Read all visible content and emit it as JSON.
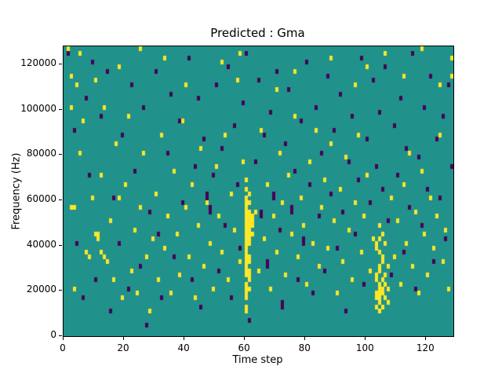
{
  "chart_data": {
    "type": "heatmap",
    "title": "Predicted : Gma",
    "xlabel": "Time step",
    "ylabel": "Frequency (Hz)",
    "xlim": [
      0,
      129
    ],
    "ylim": [
      0,
      128000
    ],
    "x_ticks": [
      0,
      20,
      40,
      60,
      80,
      100,
      120
    ],
    "y_ticks": [
      0,
      20000,
      40000,
      60000,
      80000,
      100000,
      120000
    ],
    "grid": {
      "nx": 129,
      "ny": 64,
      "cell_hz": 2000
    },
    "legend": "none",
    "colors": {
      "background": "#21918c",
      "high": "#fde725",
      "low": "#440154"
    },
    "value_legend": {
      "background": 0,
      "high": 1,
      "low": -1
    },
    "cells_high": [
      [
        60,
        5
      ],
      [
        60,
        6
      ],
      [
        60,
        8
      ],
      [
        60,
        9
      ],
      [
        60,
        10
      ],
      [
        60,
        11
      ],
      [
        60,
        13
      ],
      [
        60,
        14
      ],
      [
        60,
        15
      ],
      [
        60,
        16
      ],
      [
        60,
        17
      ],
      [
        60,
        18
      ],
      [
        60,
        19
      ],
      [
        60,
        20
      ],
      [
        60,
        21
      ],
      [
        60,
        22
      ],
      [
        60,
        23
      ],
      [
        60,
        24
      ],
      [
        60,
        25
      ],
      [
        60,
        26
      ],
      [
        60,
        27
      ],
      [
        60,
        28
      ],
      [
        60,
        29
      ],
      [
        60,
        30
      ],
      [
        60,
        32
      ],
      [
        60,
        34
      ],
      [
        61,
        10
      ],
      [
        61,
        12
      ],
      [
        61,
        13
      ],
      [
        61,
        14
      ],
      [
        61,
        16
      ],
      [
        61,
        17
      ],
      [
        61,
        20
      ],
      [
        61,
        21
      ],
      [
        61,
        22
      ],
      [
        61,
        23
      ],
      [
        61,
        24
      ],
      [
        61,
        25
      ],
      [
        61,
        26
      ],
      [
        61,
        27
      ],
      [
        61,
        29
      ],
      [
        61,
        31
      ],
      [
        62,
        22
      ],
      [
        62,
        24
      ],
      [
        62,
        25
      ],
      [
        62,
        26
      ],
      [
        103,
        6
      ],
      [
        103,
        8
      ],
      [
        103,
        9
      ],
      [
        103,
        12
      ],
      [
        103,
        13
      ],
      [
        103,
        19
      ],
      [
        103,
        20
      ],
      [
        104,
        5
      ],
      [
        104,
        7
      ],
      [
        104,
        8
      ],
      [
        104,
        9
      ],
      [
        104,
        10
      ],
      [
        104,
        11
      ],
      [
        104,
        14
      ],
      [
        104,
        15
      ],
      [
        104,
        18
      ],
      [
        104,
        21
      ],
      [
        104,
        24
      ],
      [
        105,
        6
      ],
      [
        105,
        9
      ],
      [
        105,
        10
      ],
      [
        105,
        12
      ],
      [
        105,
        16
      ],
      [
        105,
        17
      ],
      [
        105,
        22
      ],
      [
        106,
        8
      ],
      [
        106,
        11
      ],
      [
        106,
        13
      ],
      [
        106,
        20
      ],
      [
        107,
        7
      ],
      [
        107,
        10
      ],
      [
        107,
        15
      ],
      [
        2,
        50
      ],
      [
        2,
        28
      ],
      [
        3,
        28
      ],
      [
        3,
        10
      ],
      [
        4,
        55
      ],
      [
        5,
        40
      ],
      [
        6,
        47
      ],
      [
        7,
        18
      ],
      [
        8,
        17
      ],
      [
        9,
        30
      ],
      [
        10,
        22
      ],
      [
        11,
        22
      ],
      [
        11,
        21
      ],
      [
        12,
        35
      ],
      [
        12,
        18
      ],
      [
        13,
        50
      ],
      [
        13,
        17
      ],
      [
        14,
        16
      ],
      [
        15,
        25
      ],
      [
        16,
        12
      ],
      [
        17,
        42
      ],
      [
        18,
        30
      ],
      [
        19,
        8
      ],
      [
        20,
        33
      ],
      [
        21,
        48
      ],
      [
        22,
        14
      ],
      [
        23,
        23
      ],
      [
        24,
        9
      ],
      [
        25,
        28
      ],
      [
        26,
        40
      ],
      [
        27,
        17
      ],
      [
        28,
        5
      ],
      [
        29,
        21
      ],
      [
        30,
        31
      ],
      [
        31,
        12
      ],
      [
        32,
        44
      ],
      [
        33,
        19
      ],
      [
        34,
        26
      ],
      [
        35,
        9
      ],
      [
        36,
        36
      ],
      [
        37,
        22
      ],
      [
        38,
        13
      ],
      [
        39,
        47
      ],
      [
        40,
        28
      ],
      [
        41,
        17
      ],
      [
        42,
        33
      ],
      [
        43,
        8
      ],
      [
        44,
        24
      ],
      [
        45,
        41
      ],
      [
        46,
        15
      ],
      [
        47,
        29
      ],
      [
        48,
        20
      ],
      [
        49,
        10
      ],
      [
        50,
        37
      ],
      [
        51,
        26
      ],
      [
        52,
        18
      ],
      [
        53,
        44
      ],
      [
        54,
        12
      ],
      [
        55,
        31
      ],
      [
        56,
        23
      ],
      [
        57,
        56
      ],
      [
        58,
        16
      ],
      [
        59,
        38
      ],
      [
        63,
        27
      ],
      [
        64,
        14
      ],
      [
        65,
        45
      ],
      [
        66,
        21
      ],
      [
        67,
        33
      ],
      [
        68,
        10
      ],
      [
        69,
        26
      ],
      [
        70,
        18
      ],
      [
        71,
        40
      ],
      [
        72,
        29
      ],
      [
        73,
        13
      ],
      [
        74,
        35
      ],
      [
        75,
        22
      ],
      [
        76,
        48
      ],
      [
        77,
        17
      ],
      [
        78,
        30
      ],
      [
        79,
        24
      ],
      [
        80,
        11
      ],
      [
        81,
        38
      ],
      [
        82,
        20
      ],
      [
        83,
        45
      ],
      [
        84,
        15
      ],
      [
        85,
        28
      ],
      [
        86,
        34
      ],
      [
        87,
        19
      ],
      [
        88,
        42
      ],
      [
        89,
        25
      ],
      [
        90,
        9
      ],
      [
        91,
        32
      ],
      [
        92,
        16
      ],
      [
        93,
        39
      ],
      [
        94,
        23
      ],
      [
        95,
        12
      ],
      [
        96,
        29
      ],
      [
        97,
        44
      ],
      [
        98,
        18
      ],
      [
        99,
        26
      ],
      [
        100,
        35
      ],
      [
        101,
        14
      ],
      [
        102,
        21
      ],
      [
        108,
        30
      ],
      [
        109,
        17
      ],
      [
        110,
        25
      ],
      [
        111,
        11
      ],
      [
        112,
        33
      ],
      [
        113,
        20
      ],
      [
        114,
        40
      ],
      [
        115,
        15
      ],
      [
        116,
        27
      ],
      [
        117,
        9
      ],
      [
        118,
        36
      ],
      [
        119,
        22
      ],
      [
        120,
        13
      ],
      [
        121,
        30
      ],
      [
        122,
        19
      ],
      [
        123,
        26
      ],
      [
        124,
        44
      ],
      [
        125,
        16
      ],
      [
        126,
        23
      ],
      [
        127,
        10
      ],
      [
        128,
        57
      ],
      [
        1,
        63
      ],
      [
        2,
        57
      ],
      [
        5,
        62
      ],
      [
        10,
        56
      ],
      [
        18,
        59
      ],
      [
        25,
        63
      ],
      [
        33,
        61
      ],
      [
        40,
        55
      ],
      [
        52,
        60
      ],
      [
        58,
        62
      ],
      [
        70,
        54
      ],
      [
        76,
        58
      ],
      [
        88,
        61
      ],
      [
        96,
        55
      ],
      [
        100,
        59
      ],
      [
        106,
        62
      ],
      [
        112,
        57
      ],
      [
        118,
        63
      ],
      [
        124,
        55
      ],
      [
        128,
        61
      ]
    ],
    "cells_low": [
      [
        1,
        62
      ],
      [
        3,
        45
      ],
      [
        4,
        20
      ],
      [
        6,
        8
      ],
      [
        7,
        52
      ],
      [
        8,
        35
      ],
      [
        9,
        60
      ],
      [
        10,
        12
      ],
      [
        12,
        48
      ],
      [
        14,
        58
      ],
      [
        15,
        5
      ],
      [
        16,
        30
      ],
      [
        18,
        20
      ],
      [
        19,
        44
      ],
      [
        21,
        10
      ],
      [
        22,
        55
      ],
      [
        23,
        36
      ],
      [
        25,
        15
      ],
      [
        26,
        50
      ],
      [
        27,
        2
      ],
      [
        28,
        27
      ],
      [
        30,
        58
      ],
      [
        31,
        22
      ],
      [
        32,
        8
      ],
      [
        34,
        40
      ],
      [
        35,
        53
      ],
      [
        36,
        17
      ],
      [
        38,
        47
      ],
      [
        39,
        29
      ],
      [
        41,
        61
      ],
      [
        42,
        12
      ],
      [
        43,
        37
      ],
      [
        44,
        52
      ],
      [
        45,
        6
      ],
      [
        46,
        43
      ],
      [
        47,
        31
      ],
      [
        47,
        30
      ],
      [
        48,
        28
      ],
      [
        48,
        27
      ],
      [
        49,
        35
      ],
      [
        50,
        55
      ],
      [
        51,
        14
      ],
      [
        52,
        41
      ],
      [
        53,
        24
      ],
      [
        54,
        59
      ],
      [
        55,
        8
      ],
      [
        56,
        46
      ],
      [
        57,
        33
      ],
      [
        58,
        19
      ],
      [
        59,
        51
      ],
      [
        60,
        62
      ],
      [
        61,
        3
      ],
      [
        63,
        38
      ],
      [
        64,
        56
      ],
      [
        65,
        27
      ],
      [
        65,
        26
      ],
      [
        66,
        44
      ],
      [
        67,
        16
      ],
      [
        67,
        15
      ],
      [
        68,
        49
      ],
      [
        69,
        31
      ],
      [
        69,
        30
      ],
      [
        70,
        58
      ],
      [
        71,
        23
      ],
      [
        72,
        7
      ],
      [
        72,
        6
      ],
      [
        73,
        42
      ],
      [
        74,
        54
      ],
      [
        75,
        28
      ],
      [
        75,
        27
      ],
      [
        76,
        36
      ],
      [
        77,
        12
      ],
      [
        78,
        47
      ],
      [
        79,
        21
      ],
      [
        79,
        20
      ],
      [
        80,
        60
      ],
      [
        81,
        33
      ],
      [
        82,
        9
      ],
      [
        83,
        50
      ],
      [
        84,
        26
      ],
      [
        85,
        40
      ],
      [
        86,
        14
      ],
      [
        87,
        57
      ],
      [
        88,
        31
      ],
      [
        89,
        45
      ],
      [
        90,
        19
      ],
      [
        91,
        53
      ],
      [
        92,
        27
      ],
      [
        93,
        5
      ],
      [
        94,
        38
      ],
      [
        95,
        48
      ],
      [
        96,
        22
      ],
      [
        97,
        34
      ],
      [
        98,
        61
      ],
      [
        99,
        11
      ],
      [
        100,
        43
      ],
      [
        101,
        29
      ],
      [
        102,
        56
      ],
      [
        103,
        37
      ],
      [
        104,
        49
      ],
      [
        105,
        32
      ],
      [
        106,
        59
      ],
      [
        107,
        25
      ],
      [
        108,
        13
      ],
      [
        109,
        46
      ],
      [
        110,
        35
      ],
      [
        111,
        52
      ],
      [
        112,
        18
      ],
      [
        113,
        41
      ],
      [
        114,
        28
      ],
      [
        115,
        62
      ],
      [
        116,
        10
      ],
      [
        117,
        39
      ],
      [
        118,
        24
      ],
      [
        119,
        50
      ],
      [
        120,
        32
      ],
      [
        121,
        57
      ],
      [
        122,
        16
      ],
      [
        123,
        43
      ],
      [
        124,
        30
      ],
      [
        125,
        48
      ],
      [
        126,
        21
      ],
      [
        127,
        55
      ],
      [
        128,
        37
      ]
    ]
  }
}
